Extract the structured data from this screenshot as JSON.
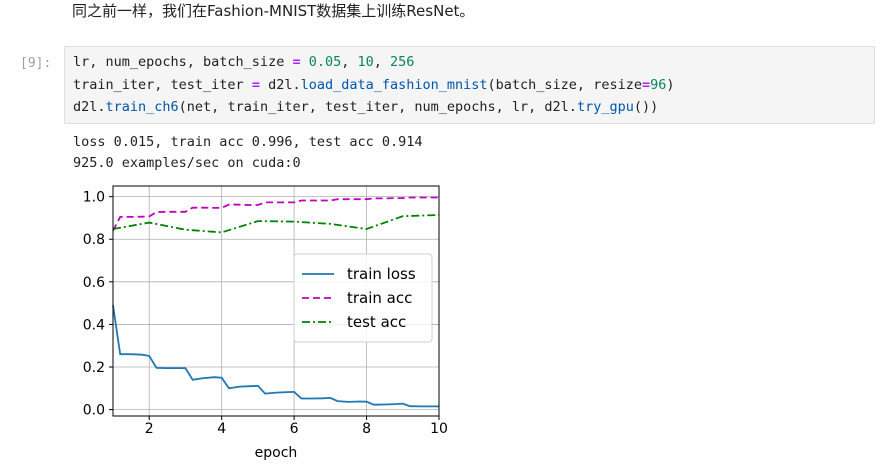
{
  "intro_text": "同之前一样，我们在Fashion-MNIST数据集上训练ResNet。",
  "cell": {
    "prompt": "[9]:",
    "lines": [
      [
        {
          "t": "lr, num_epochs, batch_size ",
          "c": ""
        },
        {
          "t": "=",
          "c": "eq"
        },
        {
          "t": " ",
          "c": ""
        },
        {
          "t": "0.05",
          "c": "num"
        },
        {
          "t": ", ",
          "c": ""
        },
        {
          "t": "10",
          "c": "num"
        },
        {
          "t": ", ",
          "c": ""
        },
        {
          "t": "256",
          "c": "num"
        }
      ],
      [
        {
          "t": "train_iter, test_iter ",
          "c": ""
        },
        {
          "t": "=",
          "c": "eq"
        },
        {
          "t": " d2l.",
          "c": ""
        },
        {
          "t": "load_data_fashion_mnist",
          "c": "fn"
        },
        {
          "t": "(batch_size, resize",
          "c": ""
        },
        {
          "t": "=",
          "c": "eq"
        },
        {
          "t": "96",
          "c": "num"
        },
        {
          "t": ")",
          "c": ""
        }
      ],
      [
        {
          "t": "d2l.",
          "c": ""
        },
        {
          "t": "train_ch6",
          "c": "fn"
        },
        {
          "t": "(net, train_iter, test_iter, num_epochs, lr, d2l.",
          "c": ""
        },
        {
          "t": "try_gpu",
          "c": "fn"
        },
        {
          "t": "())",
          "c": ""
        }
      ]
    ]
  },
  "output": {
    "line1": "loss 0.015, train acc 0.996, test acc 0.914",
    "line2": "925.0 examples/sec on cuda:0"
  },
  "chart_data": {
    "type": "line",
    "xlabel": "epoch",
    "xlim": [
      1,
      10
    ],
    "ylim": [
      -0.03,
      1.05
    ],
    "xticks": [
      "2",
      "4",
      "6",
      "8",
      "10"
    ],
    "xtick_values": [
      2,
      4,
      6,
      8,
      10
    ],
    "yticks": [
      "0.0",
      "0.2",
      "0.4",
      "0.6",
      "0.8",
      "1.0"
    ],
    "ytick_values": [
      0,
      0.2,
      0.4,
      0.6,
      0.8,
      1.0
    ],
    "grid": true,
    "legend_position": "center-right",
    "series": [
      {
        "name": "train loss",
        "color": "#1f77b4",
        "dash": "",
        "x": [
          1.0,
          1.2,
          1.5,
          1.8,
          2.0,
          2.2,
          2.5,
          2.8,
          3.0,
          3.2,
          3.5,
          3.8,
          4.0,
          4.2,
          4.5,
          4.8,
          5.0,
          5.2,
          5.5,
          5.8,
          6.0,
          6.2,
          6.5,
          6.8,
          7.0,
          7.2,
          7.5,
          7.8,
          8.0,
          8.2,
          8.5,
          8.8,
          9.0,
          9.2,
          9.5,
          9.8,
          10.0
        ],
        "y": [
          0.49,
          0.26,
          0.26,
          0.258,
          0.252,
          0.196,
          0.195,
          0.195,
          0.195,
          0.14,
          0.148,
          0.152,
          0.15,
          0.1,
          0.108,
          0.11,
          0.112,
          0.075,
          0.08,
          0.082,
          0.083,
          0.052,
          0.052,
          0.053,
          0.055,
          0.04,
          0.036,
          0.038,
          0.037,
          0.023,
          0.024,
          0.026,
          0.028,
          0.016,
          0.015,
          0.015,
          0.015
        ]
      },
      {
        "name": "train acc",
        "color": "#bf00bf",
        "dash": "7,4",
        "x": [
          1.0,
          1.2,
          1.5,
          1.8,
          2.0,
          2.2,
          2.5,
          2.8,
          3.0,
          3.2,
          3.5,
          3.8,
          4.0,
          4.2,
          4.5,
          4.8,
          5.0,
          5.2,
          5.5,
          5.8,
          6.0,
          6.2,
          6.5,
          6.8,
          7.0,
          7.2,
          7.5,
          7.8,
          8.0,
          8.2,
          8.5,
          8.8,
          9.0,
          9.2,
          9.5,
          9.8,
          10.0
        ],
        "y": [
          0.84,
          0.905,
          0.905,
          0.906,
          0.907,
          0.928,
          0.929,
          0.929,
          0.929,
          0.948,
          0.948,
          0.947,
          0.947,
          0.963,
          0.962,
          0.961,
          0.961,
          0.973,
          0.973,
          0.973,
          0.973,
          0.982,
          0.982,
          0.982,
          0.982,
          0.988,
          0.988,
          0.988,
          0.988,
          0.992,
          0.992,
          0.993,
          0.993,
          0.996,
          0.996,
          0.996,
          0.996
        ]
      },
      {
        "name": "test acc",
        "color": "#008000",
        "dash": "8,3,2,3",
        "x": [
          1,
          2,
          3,
          4,
          5,
          6,
          7,
          8,
          9,
          10
        ],
        "y": [
          0.848,
          0.878,
          0.845,
          0.832,
          0.885,
          0.883,
          0.872,
          0.848,
          0.908,
          0.914
        ]
      }
    ]
  }
}
